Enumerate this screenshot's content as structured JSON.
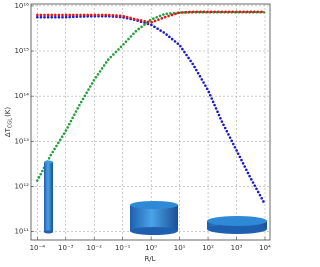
{
  "chart_data": {
    "type": "line",
    "xlabel": "R/L",
    "ylabel": "ΔT",
    "ylabel_sub": "CGL",
    "ylabel_unit": "(K)",
    "xscale": "log",
    "yscale": "log",
    "grid": true,
    "xlim": [
      6e-05,
      15000.0
    ],
    "ylim": [
      65000000000.0,
      1.1e+16
    ],
    "xticks": [
      {
        "value": 0.0001,
        "label": "10⁻⁴"
      },
      {
        "value": 0.001,
        "label": "10⁻³"
      },
      {
        "value": 0.01,
        "label": "10⁻²"
      },
      {
        "value": 0.1,
        "label": "10⁻¹"
      },
      {
        "value": 1,
        "label": "10⁰"
      },
      {
        "value": 10,
        "label": "10¹"
      },
      {
        "value": 100,
        "label": "10²"
      },
      {
        "value": 1000,
        "label": "10³"
      },
      {
        "value": 10000,
        "label": "10⁴"
      }
    ],
    "yticks": [
      {
        "value": 100000000000.0,
        "label": "10¹¹"
      },
      {
        "value": 1000000000000.0,
        "label": "10¹²"
      },
      {
        "value": 10000000000000.0,
        "label": "10¹³"
      },
      {
        "value": 100000000000000.0,
        "label": "10¹⁴"
      },
      {
        "value": 1000000000000000.0,
        "label": "10¹⁵"
      },
      {
        "value": 1e+16,
        "label": "10¹⁶"
      }
    ],
    "x": [
      0.0001,
      0.0003,
      0.001,
      0.003,
      0.01,
      0.03,
      0.1,
      0.3,
      1,
      3,
      10,
      30,
      100,
      300,
      1000,
      3000,
      10000
    ],
    "series": [
      {
        "color": "#1a1acc",
        "values": [
          5600000000000000.0,
          5600000000000000.0,
          5600000000000000.0,
          5800000000000000.0,
          5900000000000000.0,
          5900000000000000.0,
          5600000000000000.0,
          4800000000000000.0,
          3800000000000000.0,
          2500000000000000.0,
          1350000000000000.0,
          500000000000000.0,
          135000000000000.0,
          28000000000000.0,
          6300000000000.0,
          1600000000000.0,
          400000000000.0
        ]
      },
      {
        "color": "#22a03a",
        "values": [
          1350000000000.0,
          5000000000000.0,
          17000000000000.0,
          63000000000000.0,
          230000000000000.0,
          630000000000000.0,
          1350000000000000.0,
          2800000000000000.0,
          5000000000000000.0,
          6600000000000000.0,
          7100000000000000.0,
          7200000000000000.0,
          7200000000000000.0,
          7200000000000000.0,
          7200000000000000.0,
          7200000000000000.0,
          7200000000000000.0
        ]
      },
      {
        "color": "#e01515",
        "values": [
          6300000000000000.0,
          6300000000000000.0,
          6300000000000000.0,
          6300000000000000.0,
          6300000000000000.0,
          6300000000000000.0,
          6000000000000000.0,
          5000000000000000.0,
          4300000000000000.0,
          5600000000000000.0,
          7100000000000000.0,
          7400000000000000.0,
          7400000000000000.0,
          7400000000000000.0,
          7400000000000000.0,
          7400000000000000.0,
          7400000000000000.0
        ]
      }
    ]
  }
}
